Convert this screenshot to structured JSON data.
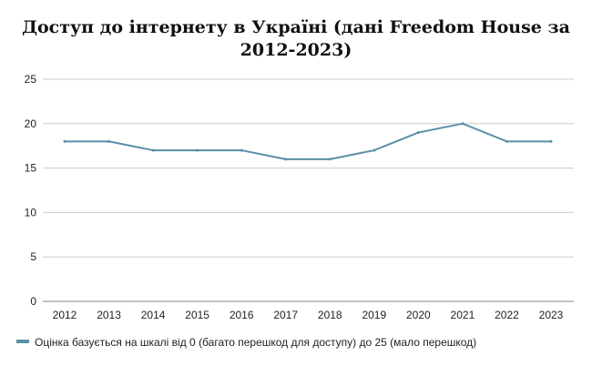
{
  "chart_data": {
    "type": "line",
    "title_line1": "Доступ до інтернету в Україні (дані Freedom House за",
    "title_line2": "2012-2023)",
    "categories": [
      "2012",
      "2013",
      "2014",
      "2015",
      "2016",
      "2017",
      "2018",
      "2019",
      "2020",
      "2021",
      "2022",
      "2023"
    ],
    "series": [
      {
        "name": "Оцінка базується на шкалі від 0 (багато перешкод для доступу) до 25 (мало перешкод)",
        "values": [
          18,
          18,
          17,
          17,
          17,
          16,
          16,
          17,
          19,
          20,
          18,
          18
        ],
        "color": "#5b8fa8"
      }
    ],
    "ylim": [
      0,
      25
    ],
    "yticks": [
      0,
      5,
      10,
      15,
      20,
      25
    ],
    "grid": true,
    "legend_position": "bottom-left"
  },
  "colors": {
    "grid": "#cccccc",
    "axis_text": "#222222",
    "line": "#5b8fa8"
  }
}
